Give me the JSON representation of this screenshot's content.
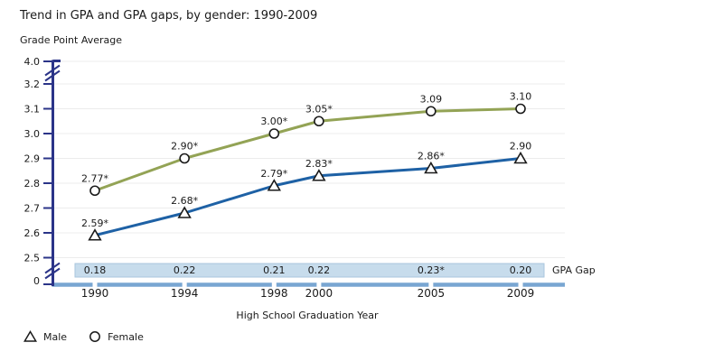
{
  "title": "Trend in GPA and GPA gaps, by gender: 1990-2009",
  "y_axis_title": "Grade Point Average",
  "x_axis_title": "High School Graduation Year",
  "legend": {
    "male_label": "Male",
    "female_label": "Female"
  },
  "colors": {
    "text": "#1a1a1a",
    "axis": "#2b3488",
    "gridline": "#ececec",
    "x_axis_line": "#79a6d2",
    "band_fill": "#c7dcec",
    "band_border": "#a9c6de",
    "marker_fill": "#ffffff",
    "marker_stroke": "#1a1a1a",
    "female_line": "#93a355",
    "male_line": "#1e61a5"
  },
  "chart_data": {
    "type": "line",
    "title": "Trend in GPA and GPA gaps, by gender: 1990-2009",
    "xlabel": "High School Graduation Year",
    "ylabel": "Grade Point Average",
    "x": [
      1990,
      1994,
      1998,
      2000,
      2005,
      2009
    ],
    "x_tick_labels": [
      "1990",
      "1994",
      "1998",
      "2000",
      "2005",
      "2009"
    ],
    "y_ticks": [
      {
        "label": "4.0",
        "value": 4.0
      },
      {
        "label": "3.2",
        "value": 3.2
      },
      {
        "label": "3.1",
        "value": 3.1
      },
      {
        "label": "3.0",
        "value": 3.0
      },
      {
        "label": "2.9",
        "value": 2.9
      },
      {
        "label": "2.8",
        "value": 2.8
      },
      {
        "label": "2.7",
        "value": 2.7
      },
      {
        "label": "2.6",
        "value": 2.6
      },
      {
        "label": "2.5",
        "value": 2.5
      },
      {
        "label": "0",
        "value": 0
      }
    ],
    "y_axis_breaks": [
      [
        4.0,
        3.2
      ],
      [
        2.5,
        0
      ]
    ],
    "ylim_displayed": [
      2.5,
      3.2
    ],
    "grid": "horizontal",
    "legend_position": "bottom-left",
    "series": [
      {
        "name": "Female",
        "marker": "circle",
        "color": "#93a355",
        "values": [
          2.77,
          2.9,
          3.0,
          3.05,
          3.09,
          3.1
        ],
        "labels": [
          "2.77*",
          "2.90*",
          "3.00*",
          "3.05*",
          "3.09",
          "3.10"
        ]
      },
      {
        "name": "Male",
        "marker": "triangle",
        "color": "#1e61a5",
        "values": [
          2.59,
          2.68,
          2.79,
          2.83,
          2.86,
          2.9
        ],
        "labels": [
          "2.59*",
          "2.68*",
          "2.79*",
          "2.83*",
          "2.86*",
          "2.90"
        ]
      }
    ],
    "gpa_gap": {
      "label": "GPA Gap",
      "values": [
        "0.18",
        "0.22",
        "0.21",
        "0.22",
        "0.23*",
        "0.20"
      ]
    }
  }
}
